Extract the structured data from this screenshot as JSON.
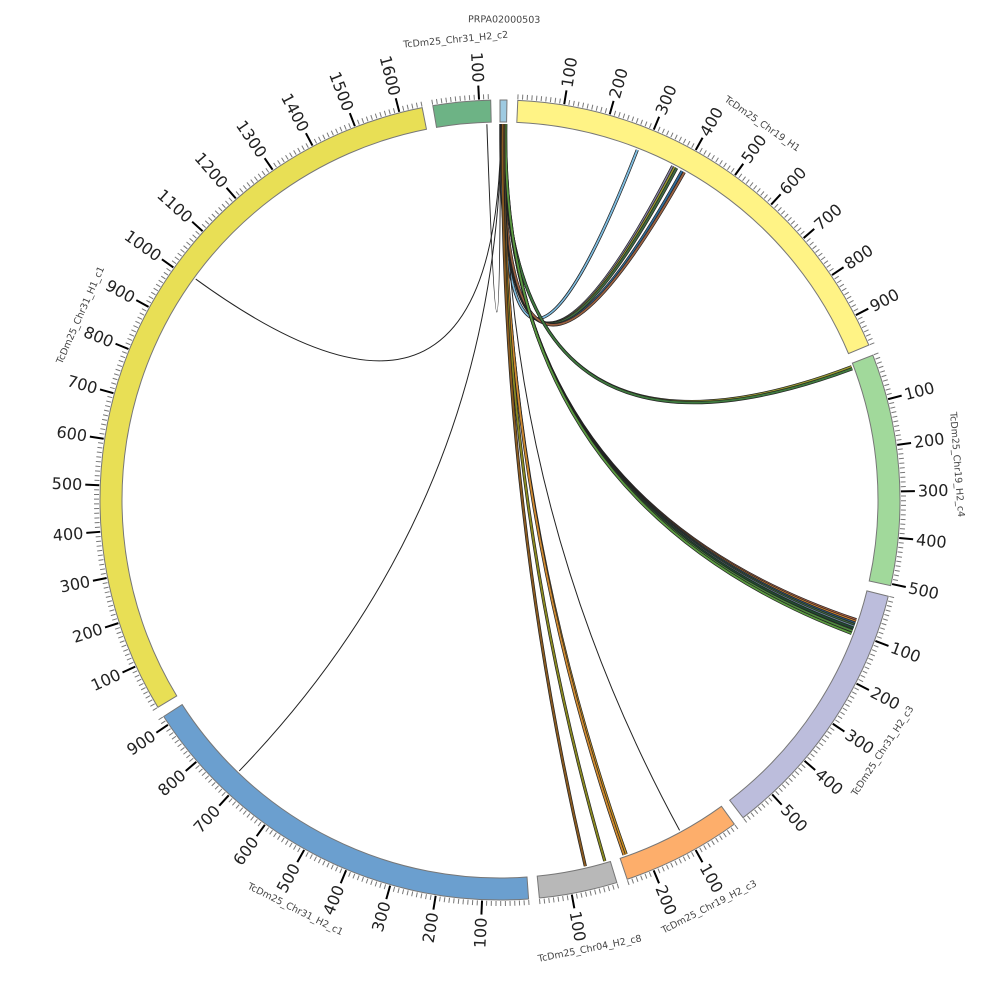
{
  "chart_data": {
    "type": "chord",
    "units_per_major_tick": 100,
    "units_per_minor_tick": 10,
    "segments": [
      {
        "name": "PRPA02000503",
        "length": 15,
        "color": "#9ecae1",
        "show_ticks": false
      },
      {
        "name": "TcDm25_Chr19_H1",
        "length": 970,
        "color": "#fff385",
        "show_ticks": true
      },
      {
        "name": "TcDm25_Chr19_H2_c4",
        "length": 504,
        "color": "#a1d99b",
        "show_ticks": true
      },
      {
        "name": "TcDm25_Chr31_H2_c3",
        "length": 580,
        "color": "#bcbddc",
        "show_ticks": true
      },
      {
        "name": "TcDm25_Chr19_H2_c3",
        "length": 260,
        "color": "#fdae6b",
        "show_ticks": true
      },
      {
        "name": "TcDm25_Chr04_H2_c8",
        "length": 170,
        "color": "#b8b8b8",
        "show_ticks": true
      },
      {
        "name": "TcDm25_Chr31_H2_c1",
        "length": 920,
        "color": "#6b9fcf",
        "show_ticks": true
      },
      {
        "name": "TcDm25_Chr31_H1_c1",
        "length": 1650,
        "color": "#e8df55",
        "show_ticks": true
      },
      {
        "name": "TcDm25_Chr31_H2_c2",
        "length": 125,
        "color": "#6db385",
        "show_ticks": true
      }
    ],
    "links": [
      {
        "source": "PRPA02000503",
        "source_pos": 2,
        "target": "TcDm25_Chr19_H1",
        "target_pos": 283,
        "color": "#7fbde0"
      },
      {
        "source": "PRPA02000503",
        "source_pos": 4,
        "target": "TcDm25_Chr19_H1",
        "target_pos": 372,
        "color": "#8a82a6"
      },
      {
        "source": "PRPA02000503",
        "source_pos": 5,
        "target": "TcDm25_Chr19_H1",
        "target_pos": 377,
        "color": "#9a9a30"
      },
      {
        "source": "PRPA02000503",
        "source_pos": 6,
        "target": "TcDm25_Chr19_H1",
        "target_pos": 382,
        "color": "#3f6a3f"
      },
      {
        "source": "PRPA02000503",
        "source_pos": 7,
        "target": "TcDm25_Chr19_H1",
        "target_pos": 396,
        "color": "#2f6a9a"
      },
      {
        "source": "PRPA02000503",
        "source_pos": 8,
        "target": "TcDm25_Chr19_H1",
        "target_pos": 402,
        "color": "#9a6040"
      },
      {
        "source": "PRPA02000503",
        "source_pos": 9,
        "target": "TcDm25_Chr19_H2_c4",
        "target_pos": 7,
        "color": "#9a9a30"
      },
      {
        "source": "PRPA02000503",
        "source_pos": 9,
        "target": "TcDm25_Chr19_H2_c4",
        "target_pos": 12,
        "color": "#3f7a3f"
      },
      {
        "source": "PRPA02000503",
        "source_pos": 10,
        "target": "TcDm25_Chr31_H2_c3",
        "target_pos": 70,
        "color": "#b06040"
      },
      {
        "source": "PRPA02000503",
        "source_pos": 10,
        "target": "TcDm25_Chr31_H2_c3",
        "target_pos": 74,
        "color": "#d08030"
      },
      {
        "source": "PRPA02000503",
        "source_pos": 11,
        "target": "TcDm25_Chr31_H2_c3",
        "target_pos": 78,
        "color": "#2f5a7a"
      },
      {
        "source": "PRPA02000503",
        "source_pos": 11,
        "target": "TcDm25_Chr31_H2_c3",
        "target_pos": 82,
        "color": "#3f6a3f"
      },
      {
        "source": "PRPA02000503",
        "source_pos": 12,
        "target": "TcDm25_Chr31_H2_c3",
        "target_pos": 86,
        "color": "#6a8a9a"
      },
      {
        "source": "PRPA02000503",
        "source_pos": 12,
        "target": "TcDm25_Chr31_H2_c3",
        "target_pos": 90,
        "color": "#204a30"
      },
      {
        "source": "PRPA02000503",
        "source_pos": 13,
        "target": "TcDm25_Chr31_H2_c3",
        "target_pos": 97,
        "color": "#4f8a3f"
      },
      {
        "source": "PRPA02000503",
        "source_pos": 13,
        "target": "TcDm25_Chr31_H2_c3",
        "target_pos": 103,
        "color": "#5a9a40"
      },
      {
        "source": "PRPA02000503",
        "source_pos": 11,
        "target": "TcDm25_Chr19_H2_c3",
        "target_pos": 110,
        "color": "#555555"
      },
      {
        "source": "PRPA02000503",
        "source_pos": 8,
        "target": "TcDm25_Chr19_H2_c3",
        "target_pos": 244,
        "color": "#c89020"
      },
      {
        "source": "PRPA02000503",
        "source_pos": 9,
        "target": "TcDm25_Chr19_H2_c3",
        "target_pos": 249,
        "color": "#d08a30"
      },
      {
        "source": "PRPA02000503",
        "source_pos": 7,
        "target": "TcDm25_Chr04_H2_c8",
        "target_pos": 12,
        "color": "#8a8a20"
      },
      {
        "source": "PRPA02000503",
        "source_pos": 6,
        "target": "TcDm25_Chr04_H2_c8",
        "target_pos": 58,
        "color": "#8a5a20"
      },
      {
        "source": "PRPA02000503",
        "source_pos": 3,
        "target": "TcDm25_Chr31_H2_c1",
        "target_pos": 720,
        "color": "#666666"
      },
      {
        "source": "PRPA02000503",
        "source_pos": 2,
        "target": "TcDm25_Chr31_H1_c1",
        "target_pos": 1008,
        "color": "#666666"
      },
      {
        "source": "PRPA02000503",
        "source_pos": 1,
        "target": "TcDm25_Chr31_H2_c2",
        "target_pos": 115,
        "color": "#666666"
      }
    ]
  }
}
